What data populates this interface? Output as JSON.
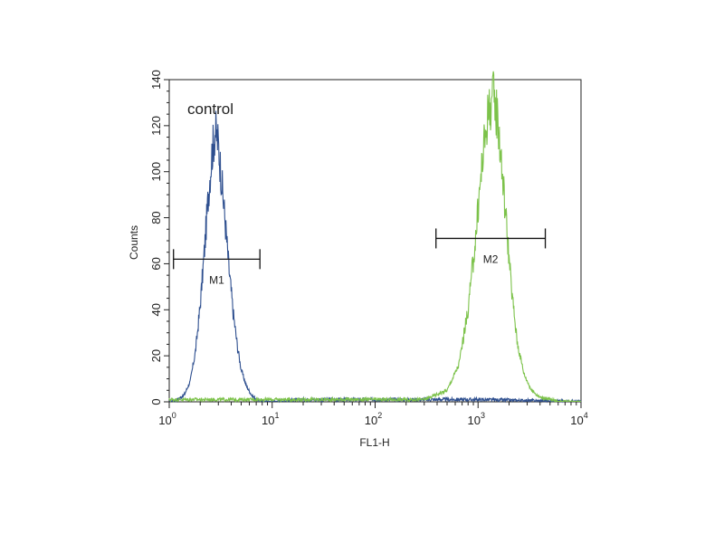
{
  "chart_data": {
    "type": "line",
    "xlabel": "FL1-H",
    "ylabel": "Counts",
    "x_scale": "log",
    "xlim": [
      1,
      10000
    ],
    "ylim": [
      0,
      140
    ],
    "x_ticks": [
      {
        "value": 1,
        "base": "10",
        "exp": "0"
      },
      {
        "value": 10,
        "base": "10",
        "exp": "1"
      },
      {
        "value": 100,
        "base": "10",
        "exp": "2"
      },
      {
        "value": 1000,
        "base": "10",
        "exp": "3"
      },
      {
        "value": 10000,
        "base": "10",
        "exp": "4"
      }
    ],
    "y_ticks": [
      0,
      20,
      40,
      60,
      80,
      100,
      120,
      140
    ],
    "annotation": "control",
    "series": [
      {
        "color": "#2e4f8f",
        "peak_x": 2.8,
        "peak_y": 118,
        "x": [
          1.0,
          1.2,
          1.4,
          1.6,
          1.8,
          2.0,
          2.2,
          2.4,
          2.6,
          2.8,
          3.0,
          3.2,
          3.5,
          3.8,
          4.2,
          4.6,
          5.0,
          5.6,
          6.3,
          7.0,
          8.0,
          10,
          20,
          50,
          100,
          1000,
          10000
        ],
        "y": [
          0,
          1,
          3,
          9,
          22,
          42,
          66,
          90,
          108,
          118,
          112,
          98,
          78,
          58,
          38,
          24,
          14,
          7,
          3,
          1,
          0,
          0,
          1,
          1,
          1,
          1,
          0
        ]
      },
      {
        "color": "#7cc24a",
        "peak_x": 1400,
        "peak_y": 133,
        "x": [
          1.0,
          10,
          100,
          300,
          500,
          650,
          800,
          950,
          1100,
          1250,
          1400,
          1550,
          1700,
          1900,
          2100,
          2400,
          2800,
          3300,
          4000,
          5000,
          6000,
          10000
        ],
        "y": [
          1,
          1,
          1,
          1,
          5,
          16,
          40,
          72,
          105,
          126,
          133,
          124,
          102,
          76,
          50,
          26,
          12,
          5,
          2,
          1,
          0,
          0
        ]
      }
    ],
    "gates": [
      {
        "label": "M1",
        "x_start": 1.1,
        "x_end": 7.6,
        "y": 62
      },
      {
        "label": "M2",
        "x_start": 390,
        "x_end": 4500,
        "y": 71
      }
    ]
  }
}
